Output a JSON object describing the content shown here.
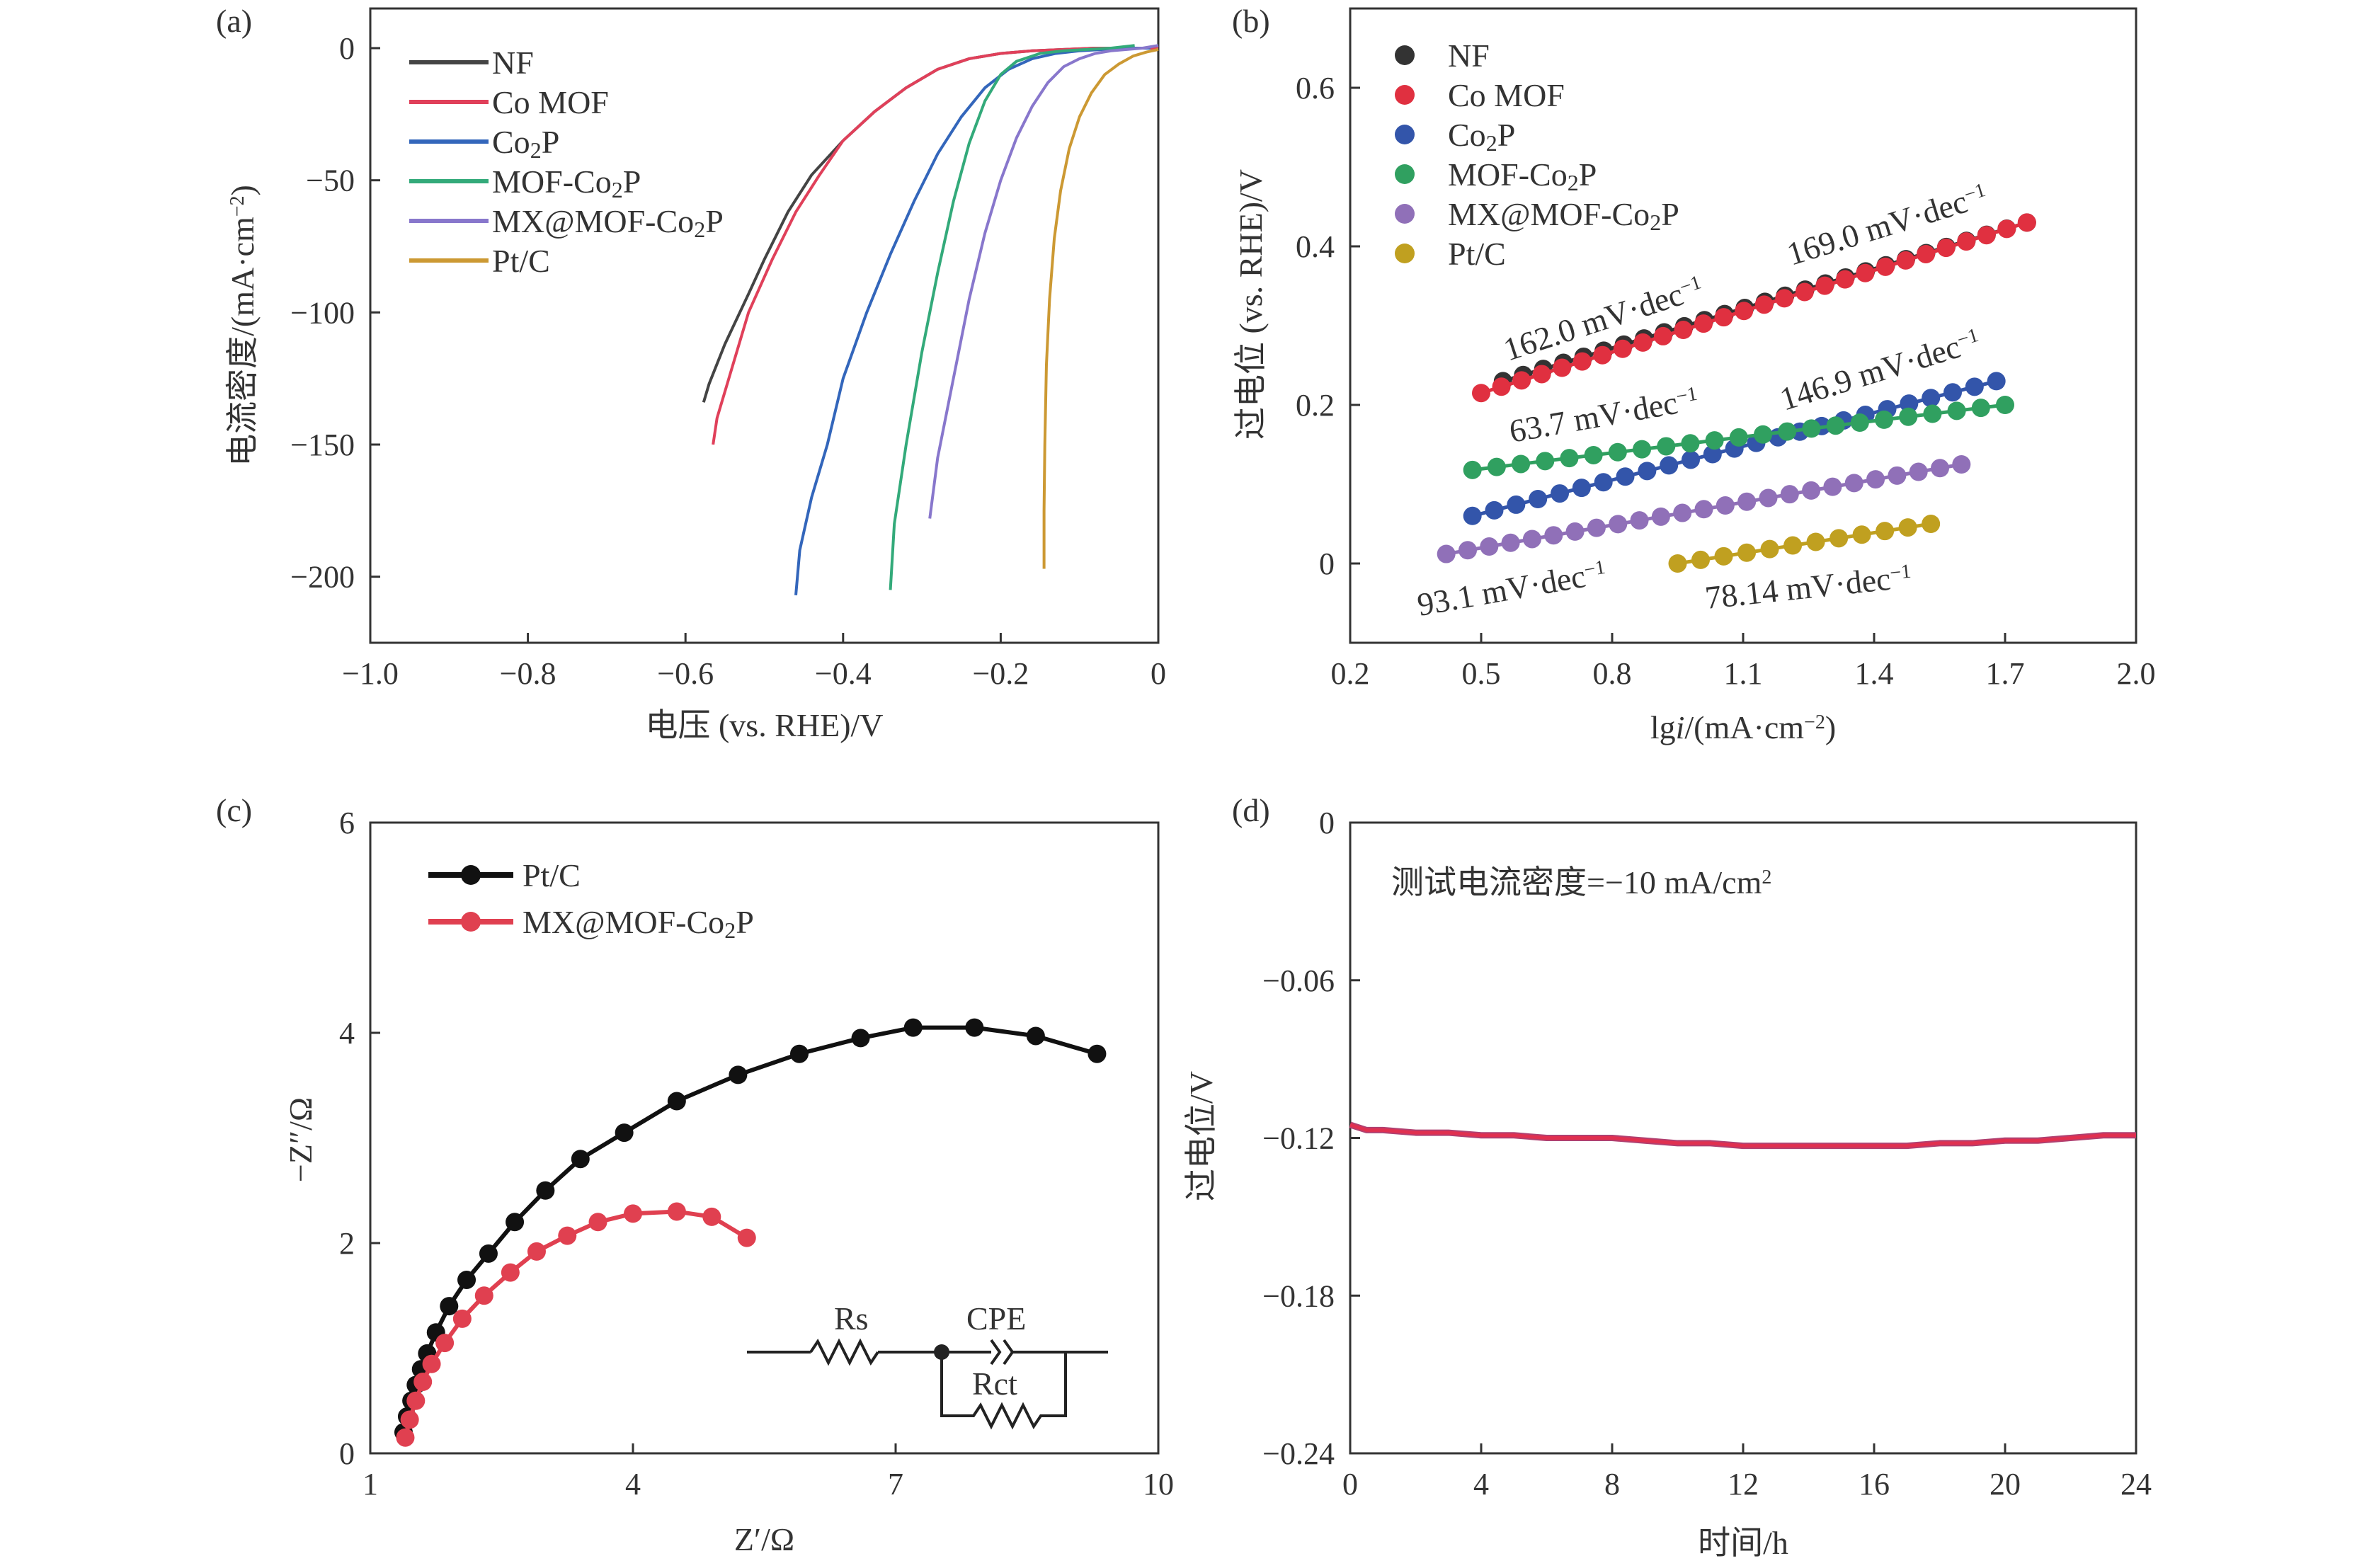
{
  "chart_data": [
    {
      "panel": "(a)",
      "type": "line",
      "xlabel": "电压 (vs. RHE)/V",
      "ylabel": "电流密度/(mA·cm−2)",
      "xlim": [
        -1.0,
        0
      ],
      "ylim": [
        -225,
        15
      ],
      "xticks": [
        "−1.0",
        "−0.8",
        "−0.6",
        "−0.4",
        "−0.2",
        "0"
      ],
      "yticks": [
        "0",
        "−50",
        "−100",
        "−150",
        "−200"
      ],
      "legend_position": "top-left",
      "series": [
        {
          "name": "NF",
          "legend_text": "NF",
          "color": "#444444",
          "x": [
            -0.577,
            -0.57,
            -0.55,
            -0.52,
            -0.5,
            -0.47,
            -0.44,
            -0.4,
            -0.36,
            -0.32,
            -0.28,
            -0.24,
            -0.2,
            -0.16,
            -0.12,
            -0.08,
            -0.04,
            0.0
          ],
          "y": [
            -134,
            -127,
            -112,
            -93,
            -80,
            -62,
            -48,
            -35,
            -24,
            -15,
            -8,
            -4,
            -2,
            -1,
            -0.5,
            0,
            0,
            0
          ]
        },
        {
          "name": "Co MOF",
          "legend_text": "Co MOF",
          "color": "#e0405a",
          "x": [
            -0.565,
            -0.56,
            -0.545,
            -0.52,
            -0.49,
            -0.46,
            -0.43,
            -0.4,
            -0.36,
            -0.32,
            -0.28,
            -0.24,
            -0.2,
            -0.16,
            -0.12,
            -0.08,
            -0.04,
            0.0
          ],
          "y": [
            -150,
            -140,
            -125,
            -100,
            -80,
            -62,
            -48,
            -35,
            -24,
            -15,
            -8,
            -4,
            -2,
            -1,
            -0.5,
            0,
            0,
            0
          ]
        },
        {
          "name": "Co2P",
          "legend_text": "Co₂P",
          "color": "#3366bb",
          "x": [
            -0.46,
            -0.455,
            -0.44,
            -0.42,
            -0.4,
            -0.37,
            -0.34,
            -0.31,
            -0.28,
            -0.25,
            -0.22,
            -0.19,
            -0.16,
            -0.13,
            -0.1,
            -0.07,
            -0.04,
            -0.01
          ],
          "y": [
            -207,
            -190,
            -170,
            -150,
            -125,
            -100,
            -78,
            -58,
            -40,
            -26,
            -15,
            -8,
            -4,
            -2,
            -1,
            -0.5,
            0,
            0
          ]
        },
        {
          "name": "MOF-Co2P",
          "legend_text": "MOF-Co₂P",
          "color": "#33aa7a",
          "x": [
            -0.34,
            -0.335,
            -0.32,
            -0.3,
            -0.28,
            -0.26,
            -0.24,
            -0.22,
            -0.2,
            -0.18,
            -0.15,
            -0.12,
            -0.09,
            -0.06,
            -0.03
          ],
          "y": [
            -205,
            -180,
            -150,
            -115,
            -85,
            -58,
            -36,
            -20,
            -10,
            -5,
            -2,
            -1,
            -0.5,
            0,
            1
          ]
        },
        {
          "name": "MX@MOF-Co2P",
          "legend_text": "MX@MOF-Co₂P",
          "color": "#8877cc",
          "x": [
            -0.29,
            -0.28,
            -0.26,
            -0.24,
            -0.22,
            -0.2,
            -0.18,
            -0.16,
            -0.14,
            -0.12,
            -0.1,
            -0.08,
            -0.06,
            -0.04,
            -0.02,
            0.0
          ],
          "y": [
            -178,
            -155,
            -125,
            -95,
            -70,
            -50,
            -34,
            -22,
            -13,
            -7,
            -4,
            -2,
            -1,
            -0.5,
            0,
            1
          ]
        },
        {
          "name": "Pt/C",
          "legend_text": "Pt/C",
          "color": "#cc9933",
          "x": [
            -0.145,
            -0.145,
            -0.144,
            -0.142,
            -0.138,
            -0.132,
            -0.124,
            -0.113,
            -0.1,
            -0.085,
            -0.068,
            -0.05,
            -0.032,
            -0.015,
            0.0
          ],
          "y": [
            -197,
            -175,
            -150,
            -120,
            -95,
            -72,
            -54,
            -38,
            -26,
            -17,
            -10,
            -6,
            -3,
            -1.5,
            -0.5
          ]
        }
      ]
    },
    {
      "panel": "(b)",
      "type": "scatter",
      "xlabel": "lgi/(mA·cm−2)",
      "ylabel": "过电位 (vs. RHE)/V",
      "xlim": [
        0.2,
        2.0
      ],
      "ylim": [
        -0.1,
        0.7
      ],
      "xticks": [
        "0.2",
        "0.5",
        "0.8",
        "1.1",
        "1.4",
        "1.7",
        "2.0"
      ],
      "yticks": [
        "0",
        "0.2",
        "0.4",
        "0.6"
      ],
      "legend_position": "top-left",
      "series": [
        {
          "name": "NF",
          "legend_text": "NF",
          "color": "#333333",
          "x_start": 0.55,
          "x_end": 1.75,
          "y_start": 0.23,
          "y_end": 0.43,
          "n": 27,
          "slope_label": "169.0 mV·dec"
        },
        {
          "name": "Co MOF",
          "legend_text": "Co MOF",
          "color": "#e03040",
          "x_start": 0.5,
          "x_end": 1.75,
          "y_start": 0.215,
          "y_end": 0.43,
          "n": 28,
          "slope_label": "162.0 mV·dec"
        },
        {
          "name": "Co2P",
          "legend_text": "Co₂P",
          "color": "#3355aa",
          "x_start": 0.48,
          "x_end": 1.68,
          "y_start": 0.06,
          "y_end": 0.23,
          "n": 25,
          "slope_label": "146.9 mV·dec"
        },
        {
          "name": "MOF-Co2P",
          "legend_text": "MOF-Co₂P",
          "color": "#30a060",
          "x_start": 0.48,
          "x_end": 1.7,
          "y_start": 0.118,
          "y_end": 0.2,
          "n": 23,
          "slope_label": "63.7 mV·dec"
        },
        {
          "name": "MX@MOF-Co2P",
          "legend_text": "MX@MOF-Co₂P",
          "color": "#9070b8",
          "x_start": 0.42,
          "x_end": 1.6,
          "y_start": 0.012,
          "y_end": 0.125,
          "n": 25,
          "slope_label": "93.1 mV·dec"
        },
        {
          "name": "Pt/C",
          "legend_text": "Pt/C",
          "color": "#c0a020",
          "x_start": 0.95,
          "x_end": 1.53,
          "y_start": 0.0,
          "y_end": 0.05,
          "n": 12,
          "slope_label": "78.14 mV·dec"
        }
      ]
    },
    {
      "panel": "(c)",
      "type": "line",
      "xlabel": "Z′/Ω",
      "ylabel": "−Z″/Ω",
      "xlim": [
        1,
        10
      ],
      "ylim": [
        0,
        6
      ],
      "xticks": [
        "1",
        "4",
        "7",
        "10"
      ],
      "yticks": [
        "0",
        "2",
        "4",
        "6"
      ],
      "legend_position": "top-left",
      "circuit_labels": [
        "Rs",
        "CPE",
        "Rct"
      ],
      "series": [
        {
          "name": "Pt/C",
          "color": "#111111",
          "x": [
            1.38,
            1.42,
            1.47,
            1.52,
            1.58,
            1.65,
            1.75,
            1.9,
            2.1,
            2.35,
            2.65,
            3.0,
            3.4,
            3.9,
            4.5,
            5.2,
            5.9,
            6.6,
            7.2,
            7.9,
            8.6,
            9.3
          ],
          "y": [
            0.2,
            0.35,
            0.5,
            0.65,
            0.8,
            0.95,
            1.15,
            1.4,
            1.65,
            1.9,
            2.2,
            2.5,
            2.8,
            3.05,
            3.35,
            3.6,
            3.8,
            3.95,
            4.05,
            4.05,
            3.97,
            3.8
          ]
        },
        {
          "name": "MX@MOF-Co2P",
          "color": "#e04050",
          "x": [
            1.4,
            1.45,
            1.52,
            1.6,
            1.7,
            1.85,
            2.05,
            2.3,
            2.6,
            2.9,
            3.25,
            3.6,
            4.0,
            4.5,
            4.9,
            5.3
          ],
          "y": [
            0.15,
            0.32,
            0.5,
            0.68,
            0.85,
            1.05,
            1.28,
            1.5,
            1.72,
            1.92,
            2.07,
            2.2,
            2.28,
            2.3,
            2.25,
            2.05
          ]
        }
      ]
    },
    {
      "panel": "(d)",
      "type": "line",
      "xlabel": "时间/h",
      "ylabel": "过电位/V",
      "xlim": [
        0,
        24
      ],
      "ylim": [
        -0.24,
        0
      ],
      "xticks": [
        "0",
        "4",
        "8",
        "12",
        "16",
        "20",
        "24"
      ],
      "yticks": [
        "0",
        "−0.06",
        "−0.12",
        "−0.18",
        "−0.24"
      ],
      "annotation": "测试电流密度=−10 mA/cm",
      "series": [
        {
          "name": "overpotential",
          "color": "#e03050",
          "x": [
            0,
            0.5,
            1,
            2,
            3,
            4,
            5,
            6,
            7,
            8,
            9,
            10,
            11,
            12,
            13,
            14,
            15,
            16,
            17,
            18,
            19,
            20,
            21,
            22,
            23,
            24
          ],
          "y": [
            -0.115,
            -0.117,
            -0.117,
            -0.118,
            -0.118,
            -0.119,
            -0.119,
            -0.12,
            -0.12,
            -0.12,
            -0.121,
            -0.122,
            -0.122,
            -0.123,
            -0.123,
            -0.123,
            -0.123,
            -0.123,
            -0.123,
            -0.122,
            -0.122,
            -0.121,
            -0.121,
            -0.12,
            -0.119,
            -0.119
          ]
        }
      ]
    }
  ]
}
